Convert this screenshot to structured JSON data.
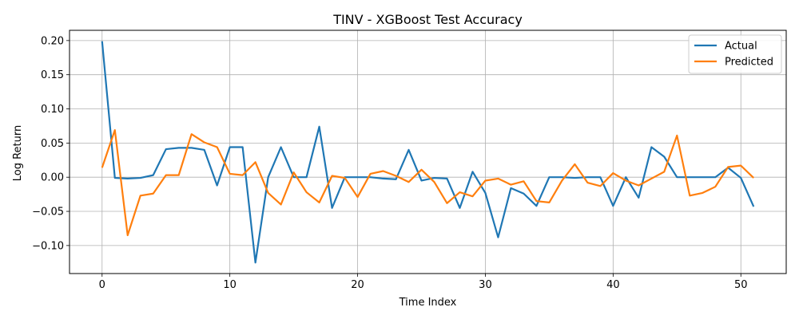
{
  "chart_data": {
    "type": "line",
    "title": "TINV - XGBoost Test Accuracy",
    "xlabel": "Time Index",
    "ylabel": "Log Return",
    "xlim": [
      -2.55,
      53.55
    ],
    "ylim": [
      -0.141,
      0.215
    ],
    "xticks": [
      0,
      10,
      20,
      30,
      40,
      50
    ],
    "xtick_labels": [
      "0",
      "10",
      "20",
      "30",
      "40",
      "50"
    ],
    "yticks": [
      -0.1,
      -0.05,
      0.0,
      0.05,
      0.1,
      0.15,
      0.2
    ],
    "ytick_labels": [
      "−0.10",
      "−0.05",
      "0.00",
      "0.05",
      "0.10",
      "0.15",
      "0.20"
    ],
    "grid": true,
    "legend_position": "top-right",
    "x": [
      0,
      1,
      2,
      3,
      4,
      5,
      6,
      7,
      8,
      9,
      10,
      11,
      12,
      13,
      14,
      15,
      16,
      17,
      18,
      19,
      20,
      21,
      22,
      23,
      24,
      25,
      26,
      27,
      28,
      29,
      30,
      31,
      32,
      33,
      34,
      35,
      36,
      37,
      38,
      39,
      40,
      41,
      42,
      43,
      44,
      45,
      46,
      47,
      48,
      49,
      50,
      51
    ],
    "series": [
      {
        "name": "Actual",
        "color": "#1f77b4",
        "values": [
          0.199,
          -0.001,
          -0.002,
          -0.001,
          0.003,
          0.041,
          0.043,
          0.043,
          0.04,
          -0.012,
          0.044,
          0.044,
          -0.125,
          0.0,
          0.044,
          0.0,
          0.0,
          0.074,
          -0.045,
          0.0,
          0.0,
          0.0,
          -0.002,
          -0.003,
          0.04,
          -0.005,
          -0.001,
          -0.002,
          -0.045,
          0.008,
          -0.023,
          -0.088,
          -0.016,
          -0.024,
          -0.042,
          0.0,
          0.0,
          -0.001,
          0.0,
          0.0,
          -0.042,
          0.0,
          -0.03,
          0.044,
          0.03,
          0.0,
          0.0,
          0.0,
          0.0,
          0.014,
          -0.001,
          -0.043
        ]
      },
      {
        "name": "Predicted",
        "color": "#ff7f0e",
        "values": [
          0.014,
          0.069,
          -0.085,
          -0.027,
          -0.024,
          0.003,
          0.003,
          0.063,
          0.051,
          0.044,
          0.005,
          0.003,
          0.022,
          -0.023,
          -0.04,
          0.007,
          -0.022,
          -0.037,
          0.002,
          -0.001,
          -0.029,
          0.005,
          0.009,
          0.002,
          -0.007,
          0.011,
          -0.007,
          -0.038,
          -0.022,
          -0.028,
          -0.005,
          -0.002,
          -0.011,
          -0.006,
          -0.035,
          -0.037,
          -0.005,
          0.019,
          -0.008,
          -0.013,
          0.006,
          -0.005,
          -0.012,
          -0.002,
          0.008,
          0.061,
          -0.027,
          -0.023,
          -0.014,
          0.015,
          0.017,
          -0.001
        ]
      }
    ]
  }
}
